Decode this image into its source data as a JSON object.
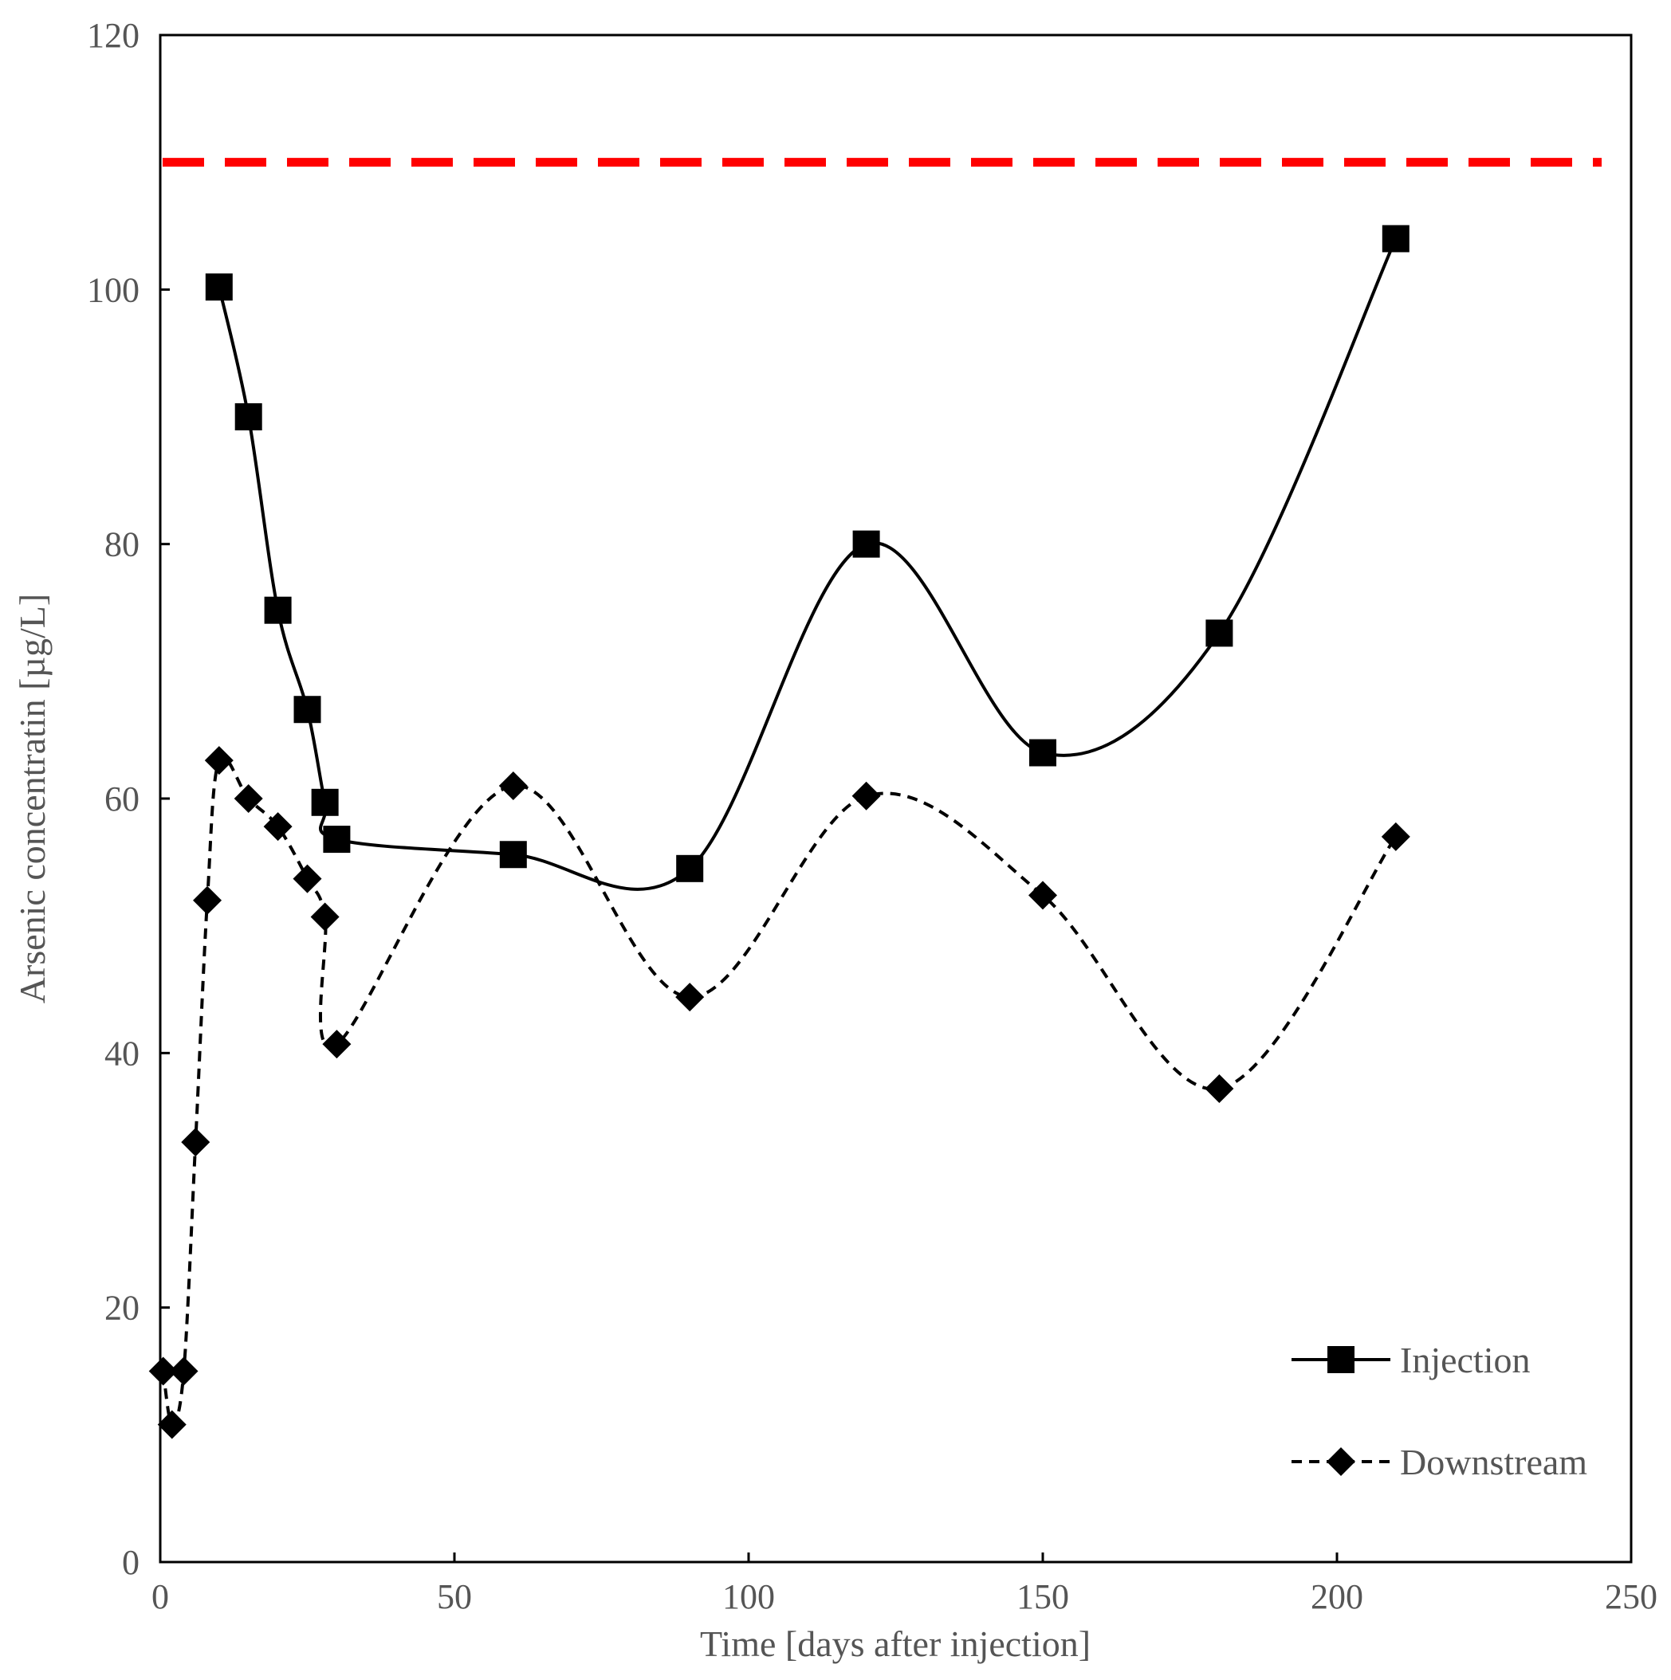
{
  "chart_data": {
    "type": "line",
    "title": "",
    "xlabel": "Time [days after injection]",
    "ylabel": "Arsenic concentratin [µg/L]",
    "xlim": [
      0,
      250
    ],
    "ylim": [
      0,
      120
    ],
    "x_ticks": [
      0,
      50,
      100,
      150,
      200,
      250
    ],
    "y_ticks": [
      0,
      20,
      40,
      60,
      80,
      100,
      120
    ],
    "grid": false,
    "legend_position": "bottom-right",
    "reference_line": {
      "y": 110,
      "color": "#ff0000",
      "style": "dashed"
    },
    "series": [
      {
        "name": "Injection",
        "marker": "square",
        "line_style": "solid",
        "color": "#000000",
        "x": [
          10,
          15,
          20,
          25,
          28,
          30,
          60,
          90,
          120,
          150,
          180,
          210
        ],
        "y": [
          100.2,
          90,
          74.8,
          67,
          59.7,
          56.8,
          55.6,
          54.5,
          80,
          63.6,
          73,
          104
        ]
      },
      {
        "name": "Downstream",
        "marker": "diamond",
        "line_style": "dashed",
        "color": "#000000",
        "x": [
          0.5,
          2,
          4,
          6,
          8,
          10,
          15,
          20,
          25,
          28,
          30,
          60,
          90,
          120,
          150,
          180,
          210
        ],
        "y": [
          15,
          10.8,
          15,
          33,
          52,
          63,
          60,
          57.8,
          53.7,
          50.7,
          40.7,
          61,
          44.4,
          60.2,
          52.4,
          37.2,
          57
        ]
      }
    ]
  }
}
